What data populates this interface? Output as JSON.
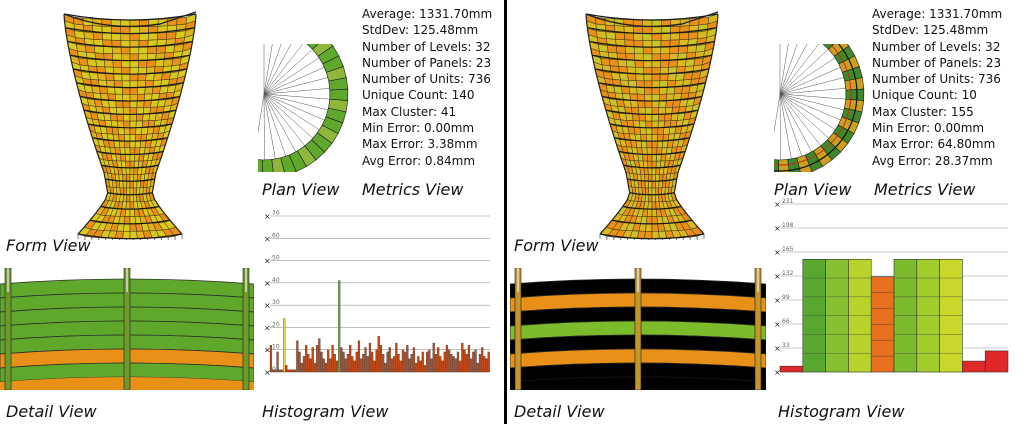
{
  "left": {
    "labels": {
      "form": "Form View",
      "plan": "Plan View",
      "metrics": "Metrics View",
      "detail": "Detail View",
      "histogram": "Histogram View"
    },
    "metrics": [
      "Average: 1331.70mm",
      "StdDev:  125.48mm",
      "Number of Levels:  32",
      "Number of Panels: 23",
      "Number of Units: 736",
      "Unique Count: 140",
      "Max Cluster: 41",
      "Min Error: 0.00mm",
      "Max Error: 3.38mm",
      "Avg Error: 0.84mm"
    ],
    "histogram": {
      "y_ticks": [
        "70",
        "60",
        "50",
        "40",
        "30",
        "20",
        "10",
        "0"
      ],
      "bars": [
        12,
        1,
        1,
        9,
        1,
        1,
        24,
        3,
        1,
        1,
        1,
        1,
        14,
        9,
        4,
        7,
        12,
        8,
        6,
        11,
        4,
        12,
        15,
        9,
        6,
        4,
        10,
        6,
        12,
        8,
        5,
        41,
        11,
        9,
        6,
        8,
        12,
        7,
        5,
        9,
        14,
        6,
        8,
        11,
        7,
        13,
        9,
        5,
        10,
        16,
        12,
        8,
        4,
        9,
        11,
        6,
        7,
        13,
        8,
        5,
        10,
        9,
        12,
        6,
        8,
        11,
        4,
        7,
        5,
        9,
        3,
        9,
        10,
        6,
        13,
        8,
        11,
        7,
        5,
        9,
        12,
        10,
        8,
        7,
        6,
        9,
        5,
        13,
        10,
        8,
        12,
        6,
        9,
        10,
        4,
        8,
        11,
        7,
        6,
        9
      ],
      "ymax": 70
    }
  },
  "right": {
    "labels": {
      "form": "Form View",
      "plan": "Plan View",
      "metrics": "Metrics View",
      "detail": "Detail View",
      "histogram": "Histogram View"
    },
    "metrics": [
      "Average: 1331.70mm",
      "StdDev:  125.48mm",
      "Number of Levels:  32",
      "Number of Panels: 23",
      "Number of Units: 736",
      "Unique Count: 10",
      "Max Cluster: 155",
      "Min Error: 0.00mm",
      "Max Error: 64.80mm",
      "Avg Error: 28.37mm"
    ],
    "histogram": {
      "y_ticks": [
        "231",
        "198",
        "165",
        "132",
        "99",
        "66",
        "33",
        "0"
      ],
      "bars": [
        8,
        155,
        155,
        155,
        131,
        155,
        155,
        155,
        15,
        29
      ],
      "ymax": 231
    }
  },
  "colors": {
    "panel_yellow": "#d8c820",
    "panel_orange": "#e89018",
    "panel_green": "#5fa82c",
    "bar_red": "#c24a1a",
    "bar_green": "#6aa83a",
    "bar_yellow": "#e8d84a"
  }
}
